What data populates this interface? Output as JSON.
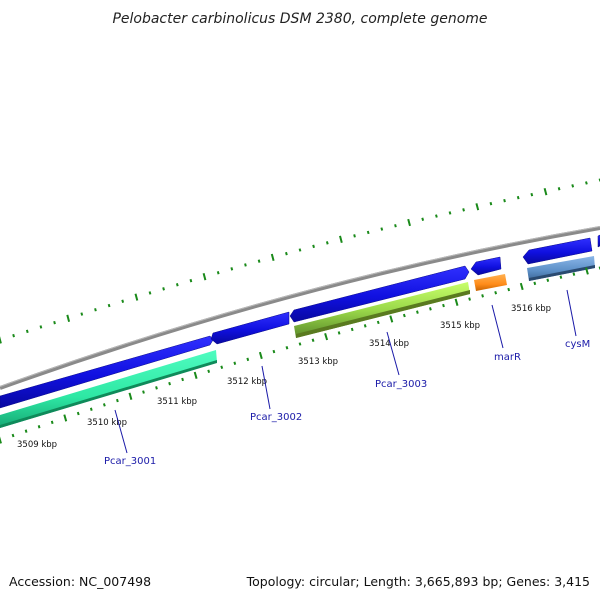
{
  "title": "Pelobacter carbinolicus DSM 2380, complete genome",
  "footer": {
    "accession": "Accession: NC_007498",
    "summary": "Topology: circular; Length: 3,665,893 bp; Genes: 3,415"
  },
  "colors": {
    "backbone": "#888888",
    "forward_cds": "#1010e0",
    "forward_cds_edge": "#0a0a8a",
    "cds_teal": "#2ee8a4",
    "cds_lime": "#a8e85a",
    "cds_orange": "#ff8c1a",
    "cds_steel": "#5b8ec6",
    "tick": "#1a8a1a",
    "gene_label": "#1a1aa8"
  },
  "ticks": [
    {
      "label": "3509 kbp",
      "pos": 3509
    },
    {
      "label": "3510 kbp",
      "pos": 3510
    },
    {
      "label": "3511 kbp",
      "pos": 3511
    },
    {
      "label": "3512 kbp",
      "pos": 3512
    },
    {
      "label": "3513 kbp",
      "pos": 3513
    },
    {
      "label": "3514 kbp",
      "pos": 3514
    },
    {
      "label": "3515 kbp",
      "pos": 3515
    },
    {
      "label": "3516 kbp",
      "pos": 3516
    }
  ],
  "genes": [
    {
      "label": "Pcar_3001",
      "color": "cds_teal",
      "icon": "arrow-right-icon"
    },
    {
      "label": "Pcar_3002",
      "color": "forward_cds",
      "icon": "arrow-left-icon"
    },
    {
      "label": "Pcar_3003",
      "color": "cds_lime",
      "icon": "arrow-right-icon"
    },
    {
      "label": "marR",
      "color": "cds_orange",
      "icon": "arrow-right-icon"
    },
    {
      "label": "cysM",
      "color": "cds_steel",
      "icon": "arrow-right-icon"
    }
  ]
}
